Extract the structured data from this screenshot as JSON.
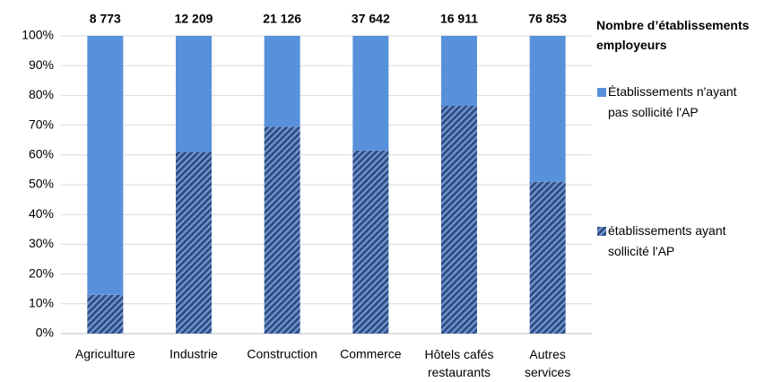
{
  "chart_data": {
    "type": "stacked_bar",
    "categories": [
      "Agriculture",
      "Industrie",
      "Construction",
      "Commerce",
      "Hôtels cafés\nrestaurants",
      "Autres\nservices"
    ],
    "series": [
      {
        "name": "établissements ayant\nsollicité l'AP",
        "color": "#2c4a7e",
        "hatch": true,
        "values": [
          13,
          61,
          69.5,
          61.5,
          76.5,
          51
        ]
      },
      {
        "name": "Établissements n'ayant\npas sollicité l'AP",
        "color": "#5891db",
        "hatch": false,
        "values": [
          87,
          39,
          30.5,
          38.5,
          23.5,
          49
        ]
      }
    ],
    "annotations": [
      "8 773",
      "12 209",
      "21 126",
      "37 642",
      "16 911",
      "76 853"
    ],
    "annotation_title": "Nombre d’établissements\nemployeurs",
    "ylim": [
      0,
      100
    ],
    "yticks": [
      {
        "value": 0,
        "label": "0%"
      },
      {
        "value": 10,
        "label": "10%"
      },
      {
        "value": 20,
        "label": "20%"
      },
      {
        "value": 30,
        "label": "30%"
      },
      {
        "value": 40,
        "label": "40%"
      },
      {
        "value": 50,
        "label": "50%"
      },
      {
        "value": 60,
        "label": "60%"
      },
      {
        "value": 70,
        "label": "70%"
      },
      {
        "value": 80,
        "label": "80%"
      },
      {
        "value": 90,
        "label": "90%"
      },
      {
        "value": 100,
        "label": "100%"
      }
    ],
    "grid": true,
    "legend": "right"
  }
}
